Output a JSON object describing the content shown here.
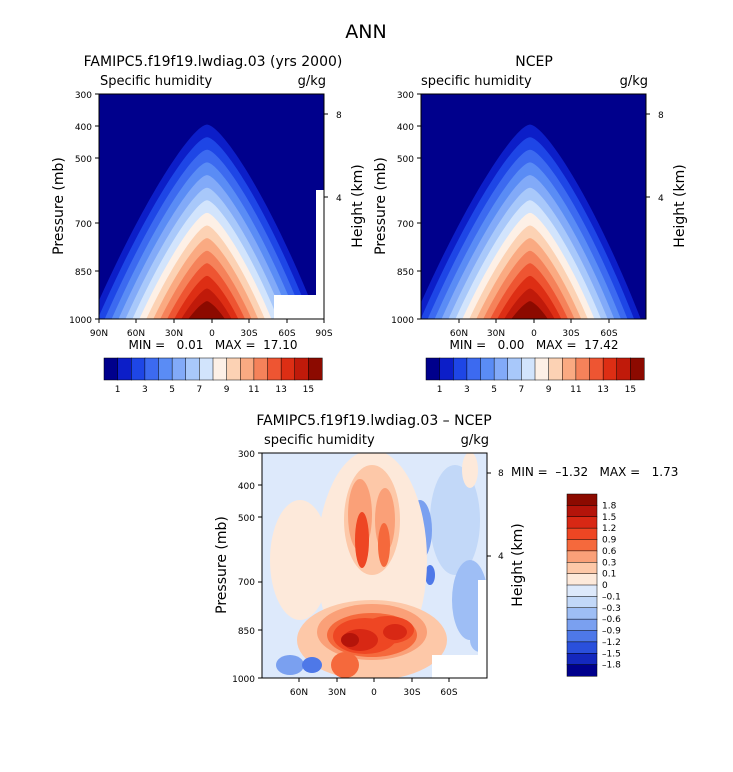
{
  "figure_title": "ANN",
  "chart_data": [
    {
      "type": "heatmap",
      "title": "FAMIPC5.f19f19.lwdiag.03 (yrs 2000)",
      "subtitle_left": "Specific humidity",
      "subtitle_right": "g/kg",
      "xlabel": "",
      "ylabel": "Pressure (mb)",
      "ylabel_right": "Height (km)",
      "x_ticks": [
        "90N",
        "60N",
        "30N",
        "0",
        "30S",
        "60S",
        "90S"
      ],
      "y_ticks": [
        "300",
        "400",
        "500",
        "700",
        "850",
        "1000"
      ],
      "height_ticks": [
        "8",
        "4"
      ],
      "xlim": [
        90,
        -90
      ],
      "ylim": [
        1000,
        300
      ],
      "stats": "MIN =   0.01   MAX =  17.10",
      "min": 0.01,
      "max": 17.1,
      "peak_value": 17.1,
      "peak_latitude": 0,
      "peak_pressure": 1000
    },
    {
      "type": "heatmap",
      "title": "NCEP",
      "subtitle_left": "specific humidity",
      "subtitle_right": "g/kg",
      "xlabel": "",
      "ylabel": "Pressure (mb)",
      "ylabel_right": "Height (km)",
      "x_ticks": [
        "60N",
        "30N",
        "0",
        "30S",
        "60S"
      ],
      "y_ticks": [
        "300",
        "400",
        "500",
        "700",
        "850",
        "1000"
      ],
      "height_ticks": [
        "8",
        "4"
      ],
      "xlim": [
        90,
        -90
      ],
      "ylim": [
        1000,
        300
      ],
      "stats": "MIN =   0.00   MAX =  17.42",
      "min": 0.0,
      "max": 17.42,
      "peak_value": 17.42,
      "peak_latitude": 0,
      "peak_pressure": 1000
    },
    {
      "type": "heatmap",
      "title": "FAMIPC5.f19f19.lwdiag.03 – NCEP",
      "subtitle_left": "specific humidity",
      "subtitle_right": "g/kg",
      "xlabel": "",
      "ylabel": "Pressure (mb)",
      "ylabel_right": "Height (km)",
      "x_ticks": [
        "60N",
        "30N",
        "0",
        "30S",
        "60S"
      ],
      "y_ticks": [
        "300",
        "400",
        "500",
        "700",
        "850",
        "1000"
      ],
      "height_ticks": [
        "8",
        "4"
      ],
      "xlim": [
        90,
        -90
      ],
      "ylim": [
        1000,
        300
      ],
      "stats": "MIN =  –1.32   MAX =   1.73",
      "min": -1.32,
      "max": 1.73
    }
  ],
  "colorbar_top": {
    "labels": [
      "1",
      "3",
      "5",
      "7",
      "9",
      "11",
      "13",
      "15"
    ],
    "colors": [
      "#00008c",
      "#0c1ec8",
      "#1e46e6",
      "#3c6af0",
      "#5a8cf5",
      "#82aaf8",
      "#a8c8fa",
      "#d2e4fc",
      "#fdf0e6",
      "#fcd2b4",
      "#faaa82",
      "#f5825a",
      "#ee5532",
      "#dd2e14",
      "#c01a0a",
      "#8c0a00"
    ]
  },
  "colorbar_diff": {
    "labels": [
      "1.8",
      "1.5",
      "1.2",
      "0.9",
      "0.6",
      "0.3",
      "0.1",
      "0",
      "–0.1",
      "–0.3",
      "–0.6",
      "–0.9",
      "–1.2",
      "–1.5",
      "–1.8"
    ],
    "colors": [
      "#8c0a00",
      "#b4140a",
      "#d82814",
      "#ee4623",
      "#f5693c",
      "#faa078",
      "#fdc8a8",
      "#fde9da",
      "#dde9fb",
      "#c2d8f8",
      "#9ebef5",
      "#7aa0f0",
      "#4e78e8",
      "#2a50dc",
      "#1428be",
      "#00008c"
    ]
  }
}
